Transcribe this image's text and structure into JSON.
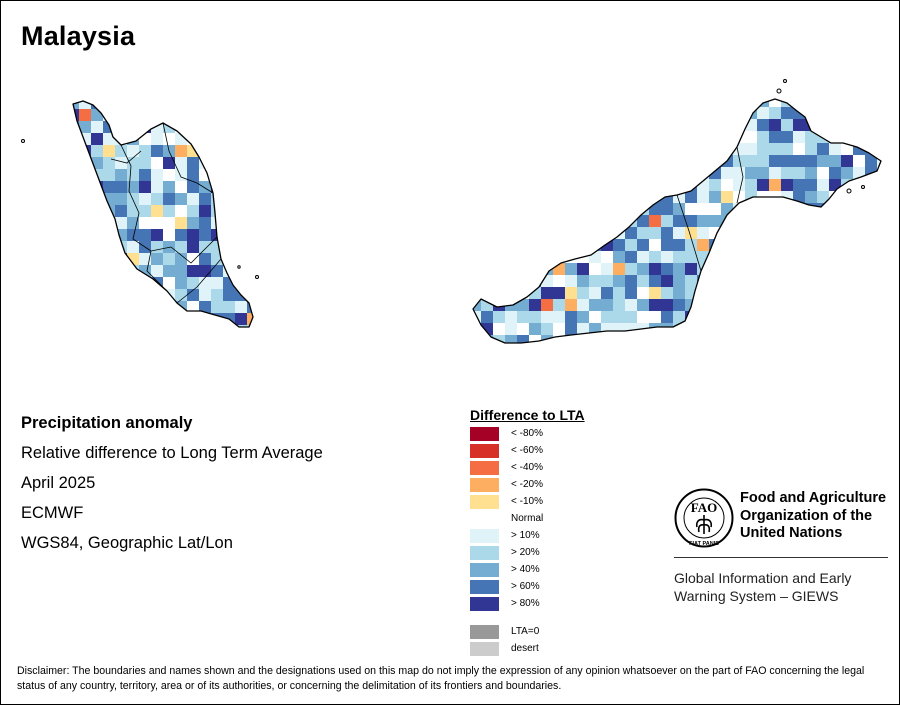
{
  "map": {
    "title": "Malaysia"
  },
  "info": {
    "heading": "Precipitation anomaly",
    "subtitle": "Relative difference to Long Term Average",
    "period": "April 2025",
    "source": "ECMWF",
    "projection": "WGS84, Geographic Lat/Lon"
  },
  "legend": {
    "title": "Difference to LTA",
    "negative_items": [
      {
        "label": "< -80%",
        "color": "#a50026"
      },
      {
        "label": "< -60%",
        "color": "#d73027"
      },
      {
        "label": "< -40%",
        "color": "#f46d43"
      },
      {
        "label": "< -20%",
        "color": "#fdae61"
      },
      {
        "label": "< -10%",
        "color": "#fee090"
      }
    ],
    "normal_label": "Normal",
    "positive_items": [
      {
        "label": "> 10%",
        "color": "#e0f3f8"
      },
      {
        "label": "> 20%",
        "color": "#abd9e9"
      },
      {
        "label": "> 40%",
        "color": "#74add1"
      },
      {
        "label": "> 60%",
        "color": "#4575b4"
      },
      {
        "label": "> 80%",
        "color": "#313695"
      }
    ],
    "special_items": [
      {
        "label": "LTA=0",
        "color": "#999999"
      },
      {
        "label": "desert",
        "color": "#cccccc"
      }
    ]
  },
  "org": {
    "name_line1": "Food and Agriculture",
    "name_line2": "Organization of the",
    "name_line3": "United Nations",
    "logo_letters": "FAO",
    "logo_motto": "FIAT PANIS",
    "system_line1": "Global Information and Early",
    "system_line2": "Warning System – GIEWS"
  },
  "disclaimer": {
    "text": "Disclaimer: The boundaries and names shown and the designations used on this map do not imply the expression of any opinion whatsoever on the part of FAO concerning the legal status of any country, territory, area or of its authorities, or concerning the delimitation of its frontiers and boundaries."
  }
}
